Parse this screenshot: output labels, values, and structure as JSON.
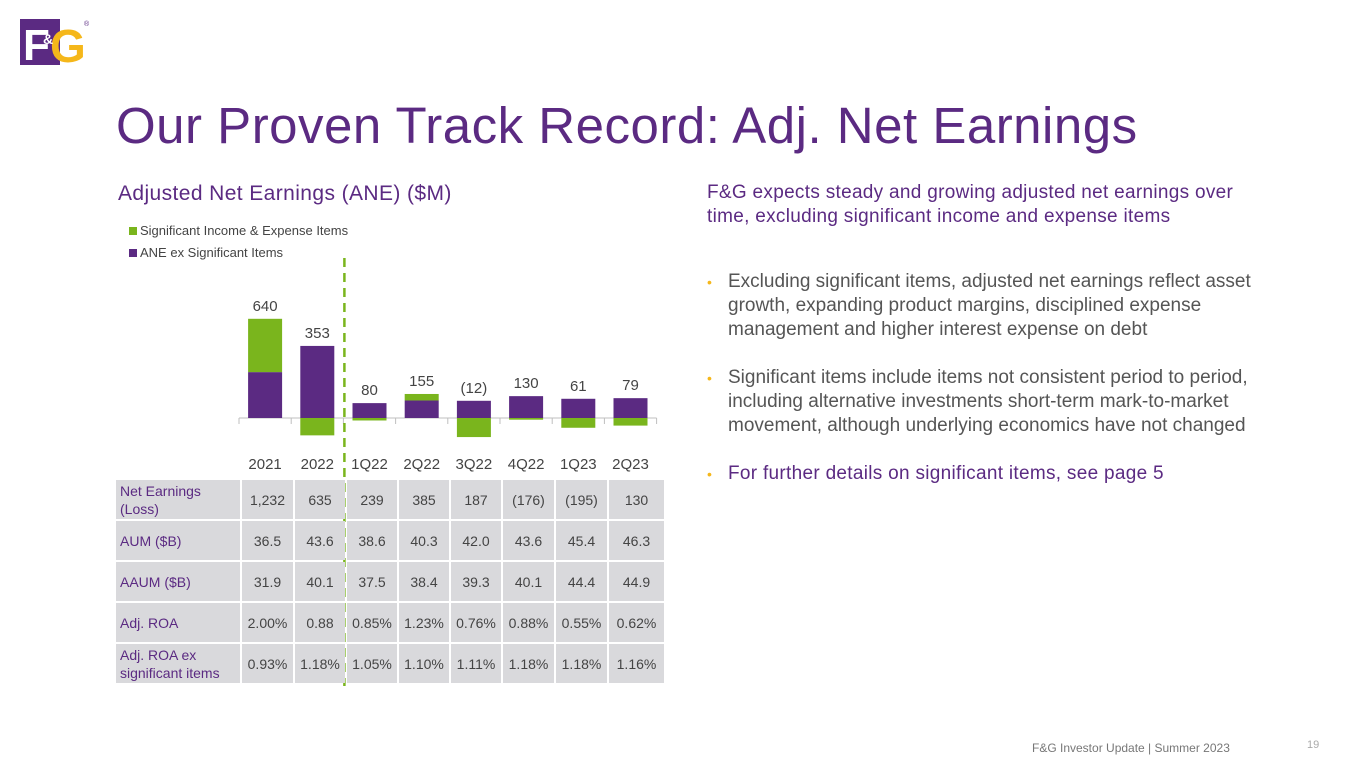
{
  "logo": {
    "text_main": "F",
    "text_amp": "&",
    "text_g": "G",
    "reg": "®"
  },
  "title": "Our Proven Track Record: Adj. Net Earnings",
  "colors": {
    "purple": "#5b2a82",
    "green": "#7ab51d",
    "gold": "#f5b71a"
  },
  "chart_data": {
    "type": "bar",
    "stacked": true,
    "title": "Adjusted Net Earnings (ANE) ($M)",
    "categories": [
      "2021",
      "2022",
      "1Q22",
      "2Q22",
      "3Q22",
      "4Q22",
      "1Q23",
      "2Q23"
    ],
    "legend": [
      "Significant Income & Expense Items",
      "ANE ex Significant Items"
    ],
    "series": [
      {
        "name": "ANE ex Significant Items",
        "color": "#5b2a82",
        "values": [
          296,
          465,
          96,
          113,
          111,
          141,
          124,
          128
        ]
      },
      {
        "name": "Significant Income & Expense Items",
        "color": "#7ab51d",
        "values": [
          344,
          -112,
          -16,
          42,
          -123,
          -11,
          -63,
          -49
        ]
      }
    ],
    "totals": [
      640,
      353,
      80,
      155,
      -12,
      130,
      61,
      79
    ],
    "total_labels": [
      "640",
      "353",
      "80",
      "155",
      "(12)",
      "130",
      "61",
      "79"
    ],
    "divider_after_index": 1
  },
  "table": {
    "rows": [
      {
        "label": "Net Earnings (Loss)",
        "values": [
          "1,232",
          "635",
          "239",
          "385",
          "187",
          "(176)",
          "(195)",
          "130"
        ]
      },
      {
        "label": "AUM ($B)",
        "values": [
          "36.5",
          "43.6",
          "38.6",
          "40.3",
          "42.0",
          "43.6",
          "45.4",
          "46.3"
        ]
      },
      {
        "label": "AAUM ($B)",
        "values": [
          "31.9",
          "40.1",
          "37.5",
          "38.4",
          "39.3",
          "40.1",
          "44.4",
          "44.9"
        ]
      },
      {
        "label": "Adj. ROA",
        "values": [
          "2.00%",
          "0.88",
          "0.85%",
          "1.23%",
          "0.76%",
          "0.88%",
          "0.55%",
          "0.62%"
        ]
      },
      {
        "label": "Adj. ROA ex significant items",
        "values": [
          "0.93%",
          "1.18%",
          "1.05%",
          "1.10%",
          "1.11%",
          "1.18%",
          "1.18%",
          "1.16%"
        ]
      }
    ]
  },
  "right": {
    "heading": "F&G expects steady and growing adjusted net earnings over time, excluding significant income and expense items",
    "bullets": [
      "Excluding significant items, adjusted net earnings reflect asset growth, expanding product margins, disciplined expense management and higher interest expense on debt",
      "Significant items include items not consistent period to period, including alternative investments short-term mark-to-market movement, although underlying economics have not changed",
      "For further details on significant items, see page 5"
    ],
    "bullet_glyph": "•"
  },
  "footer": {
    "text": "F&G Investor Update | Summer 2023",
    "page": "19"
  }
}
